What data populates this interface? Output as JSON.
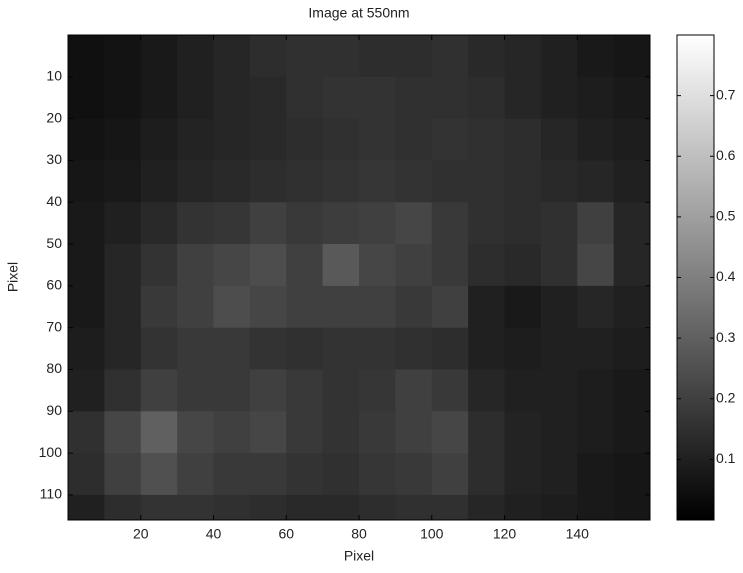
{
  "chart_data": {
    "type": "heatmap",
    "title": "Image at 550nm",
    "xlabel": "Pixel",
    "ylabel": "Pixel",
    "xbins": [
      0,
      10,
      20,
      30,
      40,
      50,
      60,
      70,
      80,
      90,
      100,
      110,
      120,
      130,
      140,
      150,
      160
    ],
    "ybins": [
      0,
      10,
      20,
      30,
      40,
      50,
      60,
      70,
      80,
      90,
      100,
      110,
      116
    ],
    "z": [
      [
        0.05,
        0.06,
        0.08,
        0.1,
        0.12,
        0.14,
        0.15,
        0.15,
        0.14,
        0.14,
        0.15,
        0.13,
        0.12,
        0.1,
        0.08,
        0.07
      ],
      [
        0.05,
        0.06,
        0.08,
        0.1,
        0.12,
        0.13,
        0.15,
        0.16,
        0.16,
        0.15,
        0.15,
        0.14,
        0.12,
        0.1,
        0.09,
        0.08
      ],
      [
        0.06,
        0.07,
        0.09,
        0.11,
        0.12,
        0.13,
        0.14,
        0.15,
        0.16,
        0.15,
        0.16,
        0.15,
        0.14,
        0.12,
        0.1,
        0.09
      ],
      [
        0.07,
        0.08,
        0.1,
        0.12,
        0.13,
        0.14,
        0.15,
        0.16,
        0.17,
        0.16,
        0.15,
        0.15,
        0.14,
        0.13,
        0.12,
        0.1
      ],
      [
        0.08,
        0.1,
        0.13,
        0.16,
        0.17,
        0.2,
        0.18,
        0.19,
        0.2,
        0.22,
        0.18,
        0.15,
        0.14,
        0.15,
        0.2,
        0.12
      ],
      [
        0.08,
        0.12,
        0.16,
        0.2,
        0.22,
        0.24,
        0.2,
        0.28,
        0.22,
        0.2,
        0.18,
        0.14,
        0.13,
        0.15,
        0.22,
        0.12
      ],
      [
        0.08,
        0.12,
        0.18,
        0.2,
        0.24,
        0.22,
        0.2,
        0.2,
        0.2,
        0.18,
        0.2,
        0.1,
        0.08,
        0.1,
        0.12,
        0.1
      ],
      [
        0.09,
        0.12,
        0.16,
        0.18,
        0.18,
        0.16,
        0.15,
        0.16,
        0.16,
        0.15,
        0.14,
        0.1,
        0.09,
        0.1,
        0.1,
        0.09
      ],
      [
        0.1,
        0.15,
        0.2,
        0.18,
        0.18,
        0.2,
        0.18,
        0.16,
        0.17,
        0.2,
        0.18,
        0.12,
        0.1,
        0.1,
        0.09,
        0.08
      ],
      [
        0.15,
        0.22,
        0.3,
        0.22,
        0.2,
        0.22,
        0.18,
        0.16,
        0.18,
        0.2,
        0.22,
        0.14,
        0.11,
        0.1,
        0.09,
        0.08
      ],
      [
        0.14,
        0.2,
        0.25,
        0.2,
        0.18,
        0.18,
        0.16,
        0.15,
        0.17,
        0.18,
        0.2,
        0.14,
        0.11,
        0.1,
        0.08,
        0.07
      ],
      [
        0.1,
        0.14,
        0.16,
        0.16,
        0.15,
        0.14,
        0.13,
        0.13,
        0.14,
        0.15,
        0.15,
        0.12,
        0.1,
        0.09,
        0.08,
        0.07
      ]
    ],
    "xlim": [
      0,
      160
    ],
    "xticks": [
      20,
      40,
      60,
      80,
      100,
      120,
      140
    ],
    "ylim": [
      0,
      116
    ],
    "yticks": [
      10,
      20,
      30,
      40,
      50,
      60,
      70,
      80,
      90,
      100,
      110
    ],
    "y_reversed": true,
    "colormap": "gray",
    "clim": [
      0,
      0.8
    ],
    "cticks": [
      0.1,
      0.2,
      0.3,
      0.4,
      0.5,
      0.6,
      0.7
    ]
  }
}
